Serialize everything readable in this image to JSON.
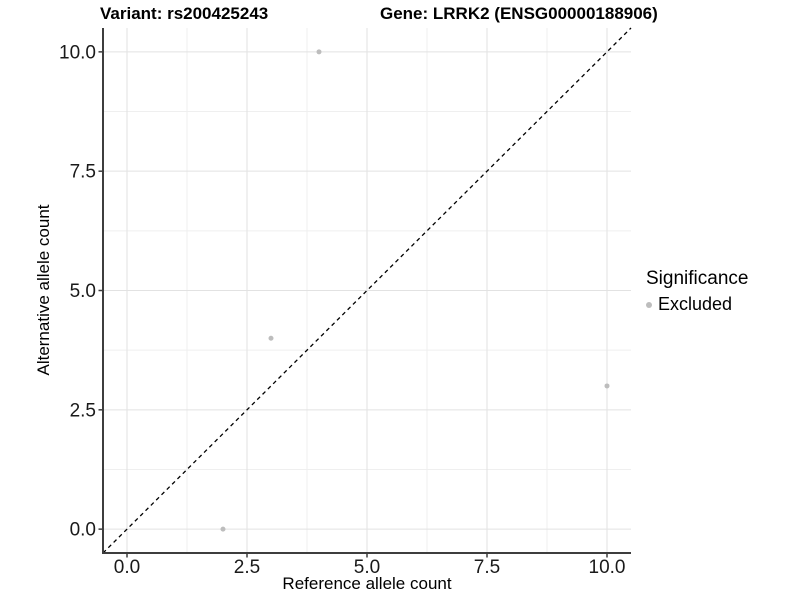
{
  "figure": {
    "title_variant": "Variant: rs200425243",
    "title_gene": "Gene: LRRK2 (ENSG00000188906)"
  },
  "chart_data": {
    "type": "scatter",
    "title": "Variant: rs200425243    Gene: LRRK2 (ENSG00000188906)",
    "xlabel": "Reference allele count",
    "ylabel": "Alternative allele count",
    "xlim": [
      -0.5,
      10.5
    ],
    "ylim": [
      -0.5,
      10.5
    ],
    "x_ticks": [
      0,
      2.5,
      5,
      7.5,
      10
    ],
    "y_ticks": [
      0,
      2.5,
      5,
      7.5,
      10
    ],
    "x_tick_labels": [
      "0.0",
      "2.5",
      "5.0",
      "7.5",
      "10.0"
    ],
    "y_tick_labels": [
      "0.0",
      "2.5",
      "5.0",
      "7.5",
      "10.0"
    ],
    "minor_ticks": [
      1.25,
      3.75,
      6.25,
      8.75
    ],
    "grid": true,
    "series": [
      {
        "name": "Excluded",
        "color": "#bdbdbd",
        "points": [
          {
            "x": 2,
            "y": 0
          },
          {
            "x": 3,
            "y": 4
          },
          {
            "x": 4,
            "y": 10
          },
          {
            "x": 10,
            "y": 3
          }
        ]
      }
    ],
    "reference_line": {
      "slope": 1,
      "intercept": 0,
      "linetype": "dashed",
      "color": "#000000"
    },
    "legend": {
      "position": "right",
      "title": "Significance",
      "items": [
        {
          "label": "Excluded",
          "color": "#bdbdbd"
        }
      ]
    }
  },
  "colors": {
    "point": "#bdbdbd",
    "grid_major": "#e2e2e2",
    "grid_minor": "#efefef",
    "axis_line": "#3d3d3d",
    "tick_label": "#1a1a1a",
    "reference_line": "#000000"
  }
}
